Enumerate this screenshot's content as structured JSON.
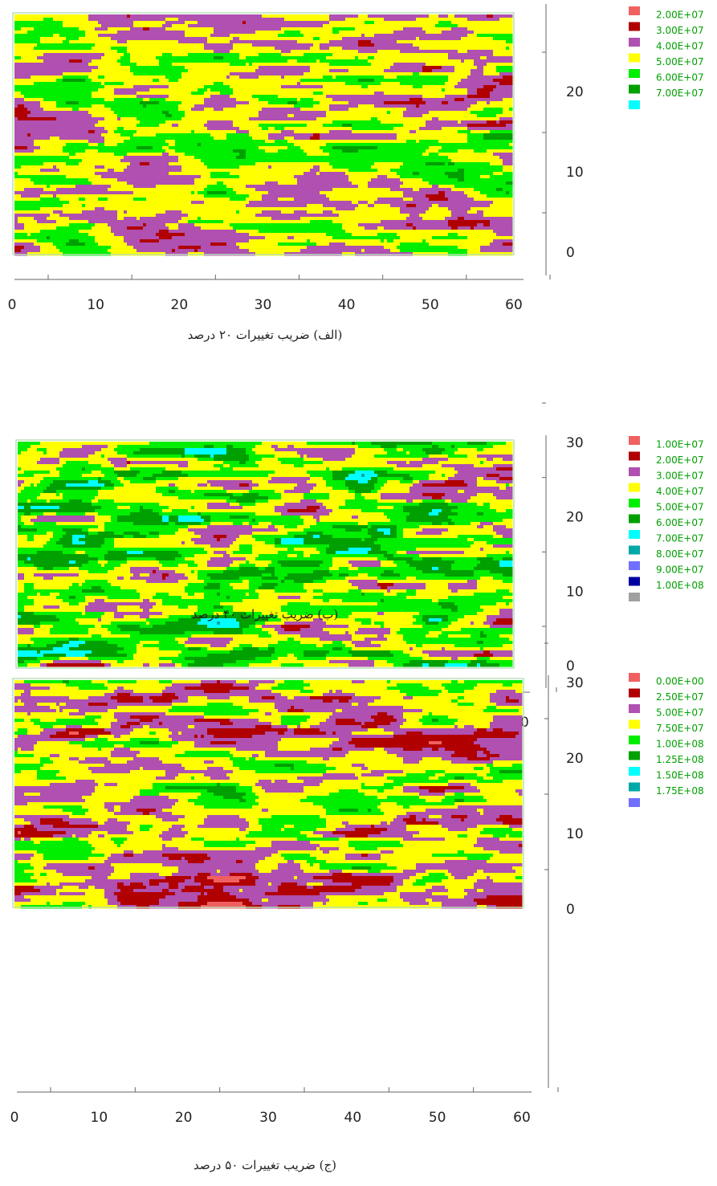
{
  "chart_data": [
    {
      "type": "contour",
      "caption": "(الف) ضریب تغییرات ۲۰ درصد",
      "xlim": [
        0,
        60
      ],
      "xticks": [
        0,
        10,
        20,
        30,
        40,
        50,
        60
      ],
      "ylim": [
        0,
        30
      ],
      "yticks": [
        0,
        10,
        20
      ],
      "levels": [
        {
          "value": 20000000,
          "label": "2.00E+07"
        },
        {
          "value": 30000000,
          "label": "3.00E+07"
        },
        {
          "value": 40000000,
          "label": "4.00E+07"
        },
        {
          "value": 50000000,
          "label": "5.00E+07"
        },
        {
          "value": 60000000,
          "label": "6.00E+07"
        },
        {
          "value": 70000000,
          "label": "7.00E+07"
        }
      ],
      "colors": [
        "#f06060",
        "#b00000",
        "#b050b0",
        "#ffff00",
        "#00ee00",
        "#00a000",
        "#00ffff"
      ]
    },
    {
      "type": "contour",
      "caption": "(ب) ضریب تغییرات ۴۰ درصد",
      "xlim": [
        0,
        60
      ],
      "xticks": [
        0,
        10,
        20,
        30,
        40,
        50,
        60
      ],
      "ylim": [
        0,
        30
      ],
      "yticks": [
        0,
        10,
        20,
        30
      ],
      "levels": [
        {
          "value": 10000000,
          "label": "1.00E+07"
        },
        {
          "value": 20000000,
          "label": "2.00E+07"
        },
        {
          "value": 30000000,
          "label": "3.00E+07"
        },
        {
          "value": 40000000,
          "label": "4.00E+07"
        },
        {
          "value": 50000000,
          "label": "5.00E+07"
        },
        {
          "value": 60000000,
          "label": "6.00E+07"
        },
        {
          "value": 70000000,
          "label": "7.00E+07"
        },
        {
          "value": 80000000,
          "label": "8.00E+07"
        },
        {
          "value": 90000000,
          "label": "9.00E+07"
        },
        {
          "value": 100000000,
          "label": "1.00E+08"
        }
      ],
      "colors": [
        "#f06060",
        "#b00000",
        "#b050b0",
        "#ffff00",
        "#00ee00",
        "#00a000",
        "#00ffff",
        "#00a8a8",
        "#7070ff",
        "#0000a0",
        "#a0a0a0"
      ]
    },
    {
      "type": "contour",
      "caption": "(ج) ضریب تغییرات ۵۰ درصد",
      "xlim": [
        0,
        60
      ],
      "xticks": [
        0,
        10,
        20,
        30,
        40,
        50,
        60
      ],
      "ylim": [
        0,
        30
      ],
      "yticks": [
        0,
        10,
        20,
        30
      ],
      "levels": [
        {
          "value": 0,
          "label": "0.00E+00"
        },
        {
          "value": 25000000,
          "label": "2.50E+07"
        },
        {
          "value": 50000000,
          "label": "5.00E+07"
        },
        {
          "value": 75000000,
          "label": "7.50E+07"
        },
        {
          "value": 100000000,
          "label": "1.00E+08"
        },
        {
          "value": 125000000,
          "label": "1.25E+08"
        },
        {
          "value": 150000000,
          "label": "1.50E+08"
        },
        {
          "value": 175000000,
          "label": "1.75E+08"
        }
      ],
      "colors": [
        "#f06060",
        "#b00000",
        "#b050b0",
        "#ffff00",
        "#00ee00",
        "#00a000",
        "#00ffff",
        "#00a8a8",
        "#7070ff"
      ]
    }
  ]
}
